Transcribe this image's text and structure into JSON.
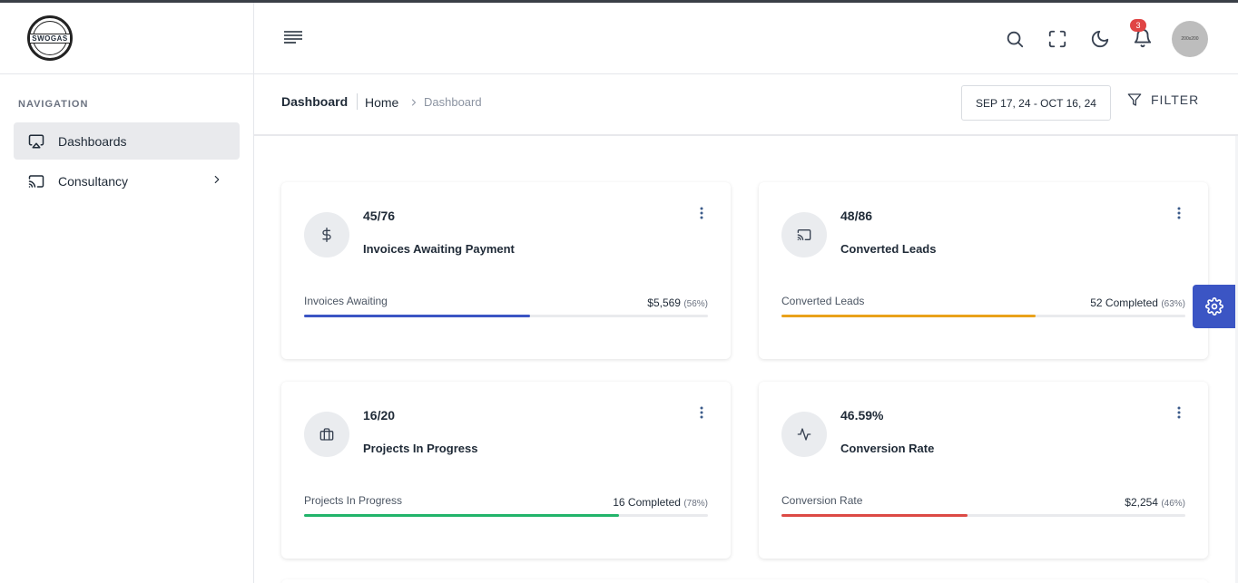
{
  "logo": {
    "text": "SWOGAS"
  },
  "sidebar": {
    "heading": "NAVIGATION",
    "items": [
      {
        "label": "Dashboards",
        "icon": "airplay-icon"
      },
      {
        "label": "Consultancy",
        "icon": "cast-icon"
      }
    ]
  },
  "header": {
    "notifications_count": "3",
    "avatar_text": "200x200"
  },
  "page": {
    "title": "Dashboard",
    "breadcrumb_home": "Home",
    "breadcrumb_current": "Dashboard",
    "date_range": "SEP 17, 24 - OCT 16, 24",
    "filter_label": "FILTER"
  },
  "cards": [
    {
      "value": "45/76",
      "label": "Invoices Awaiting Payment",
      "sublabel": "Invoices Awaiting",
      "stat": "$5,569",
      "pct": "(56%)",
      "progress": 0.56,
      "color": "#3b55c4",
      "icon": "dollar-icon"
    },
    {
      "value": "48/86",
      "label": "Converted Leads",
      "sublabel": "Converted Leads",
      "stat": "52 Completed",
      "pct": "(63%)",
      "progress": 0.63,
      "color": "#e9a21b",
      "icon": "cast-icon"
    },
    {
      "value": "16/20",
      "label": "Projects In Progress",
      "sublabel": "Projects In Progress",
      "stat": "16 Completed",
      "pct": "(78%)",
      "progress": 0.78,
      "color": "#22b46a",
      "icon": "briefcase-icon"
    },
    {
      "value": "46.59%",
      "label": "Conversion Rate",
      "sublabel": "Conversion Rate",
      "stat": "$2,254",
      "pct": "(46%)",
      "progress": 0.46,
      "color": "#dc4a45",
      "icon": "activity-icon"
    }
  ]
}
